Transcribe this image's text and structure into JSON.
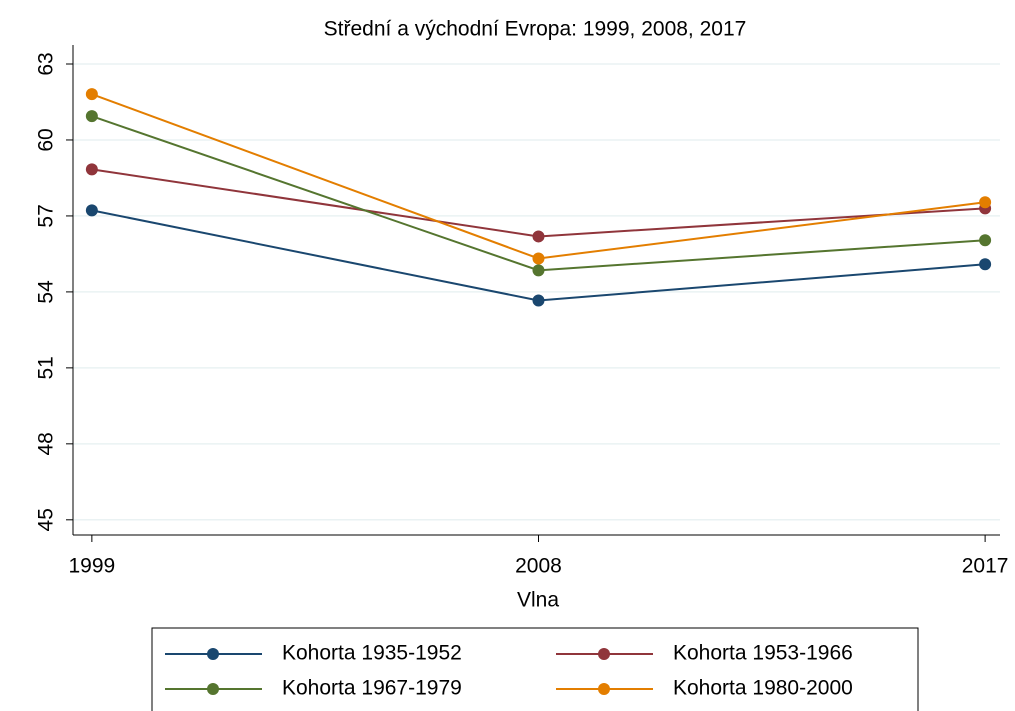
{
  "chart_data": {
    "type": "line",
    "title": "Střední a východní Evropa: 1999, 2008, 2017",
    "x_label": "Vlna",
    "x": [
      1999,
      2008,
      2017
    ],
    "xlim": [
      1998.62,
      2017.3
    ],
    "xticks": [
      1999,
      2008,
      2017
    ],
    "ylim": [
      44.4,
      63.75
    ],
    "yticks": [
      45,
      48,
      51,
      54,
      57,
      60,
      63
    ],
    "grid": true,
    "legend": "bottom",
    "series": [
      {
        "name": "Kohorta 1935-1952",
        "color": "#1a476f",
        "values": [
          57.22,
          53.66,
          55.09
        ]
      },
      {
        "name": "Kohorta 1953-1966",
        "color": "#90353b",
        "values": [
          58.84,
          56.19,
          57.3
        ]
      },
      {
        "name": "Kohorta 1967-1979",
        "color": "#55752f",
        "values": [
          60.94,
          54.85,
          56.04
        ]
      },
      {
        "name": "Kohorta 1980-2000",
        "color": "#e37e00",
        "values": [
          61.81,
          55.32,
          57.54
        ]
      }
    ]
  }
}
